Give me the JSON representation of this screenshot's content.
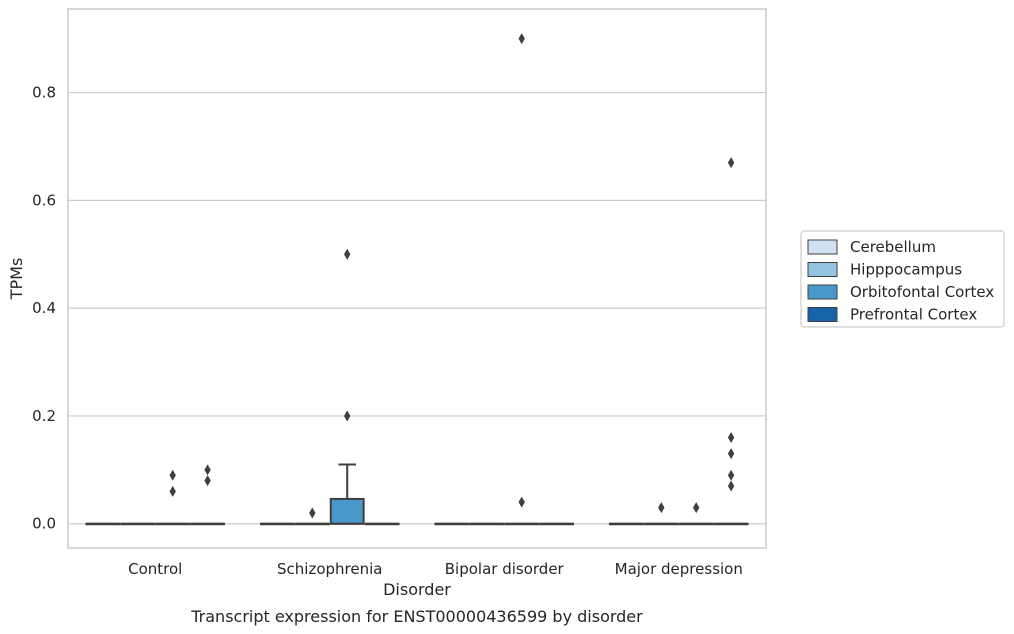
{
  "chart_data": {
    "type": "box",
    "title": "",
    "caption": "Transcript expression for ENST00000436599 by disorder",
    "xlabel": "Disorder",
    "ylabel": "TPMs",
    "ylim": [
      -0.045,
      0.955
    ],
    "yticks": [
      0.0,
      0.2,
      0.4,
      0.6,
      0.8
    ],
    "ytick_labels": [
      "0.0",
      "0.2",
      "0.4",
      "0.6",
      "0.8"
    ],
    "grid": "horizontal",
    "legend_position": "right",
    "categories": [
      "Control",
      "Schizophrenia",
      "Bipolar disorder",
      "Major depression"
    ],
    "series": [
      {
        "name": "Cerebellum",
        "color": "#d0e1f2",
        "boxes": [
          {
            "q1": 0,
            "median": 0,
            "q3": 0,
            "whisker_low": 0,
            "whisker_high": 0,
            "outliers": []
          },
          {
            "q1": 0,
            "median": 0,
            "q3": 0,
            "whisker_low": 0,
            "whisker_high": 0,
            "outliers": []
          },
          {
            "q1": 0,
            "median": 0,
            "q3": 0,
            "whisker_low": 0,
            "whisker_high": 0,
            "outliers": []
          },
          {
            "q1": 0,
            "median": 0,
            "q3": 0,
            "whisker_low": 0,
            "whisker_high": 0,
            "outliers": []
          }
        ]
      },
      {
        "name": "Hipppocampus",
        "color": "#94c4df",
        "boxes": [
          {
            "q1": 0,
            "median": 0,
            "q3": 0,
            "whisker_low": 0,
            "whisker_high": 0,
            "outliers": []
          },
          {
            "q1": 0,
            "median": 0,
            "q3": 0,
            "whisker_low": 0,
            "whisker_high": 0,
            "outliers": [
              0.02
            ]
          },
          {
            "q1": 0,
            "median": 0,
            "q3": 0,
            "whisker_low": 0,
            "whisker_high": 0,
            "outliers": []
          },
          {
            "q1": 0,
            "median": 0,
            "q3": 0,
            "whisker_low": 0,
            "whisker_high": 0,
            "outliers": [
              0.03
            ]
          }
        ]
      },
      {
        "name": "Orbitofontal Cortex",
        "color": "#4a98c9",
        "boxes": [
          {
            "q1": 0,
            "median": 0,
            "q3": 0,
            "whisker_low": 0,
            "whisker_high": 0,
            "outliers": [
              0.06,
              0.09
            ]
          },
          {
            "q1": 0,
            "median": 0,
            "q3": 0.046,
            "whisker_low": 0,
            "whisker_high": 0.11,
            "outliers": [
              0.2,
              0.5
            ]
          },
          {
            "q1": 0,
            "median": 0,
            "q3": 0,
            "whisker_low": 0,
            "whisker_high": 0,
            "outliers": [
              0.04,
              0.9
            ]
          },
          {
            "q1": 0,
            "median": 0,
            "q3": 0,
            "whisker_low": 0,
            "whisker_high": 0,
            "outliers": [
              0.03
            ]
          }
        ]
      },
      {
        "name": "Prefrontal Cortex",
        "color": "#1764ab",
        "boxes": [
          {
            "q1": 0,
            "median": 0,
            "q3": 0,
            "whisker_low": 0,
            "whisker_high": 0,
            "outliers": [
              0.08,
              0.1
            ]
          },
          {
            "q1": 0,
            "median": 0,
            "q3": 0,
            "whisker_low": 0,
            "whisker_high": 0,
            "outliers": []
          },
          {
            "q1": 0,
            "median": 0,
            "q3": 0,
            "whisker_low": 0,
            "whisker_high": 0,
            "outliers": []
          },
          {
            "q1": 0,
            "median": 0,
            "q3": 0,
            "whisker_low": 0,
            "whisker_high": 0,
            "outliers": [
              0.07,
              0.13,
              0.67,
              0.09,
              0.16
            ]
          }
        ]
      }
    ]
  }
}
